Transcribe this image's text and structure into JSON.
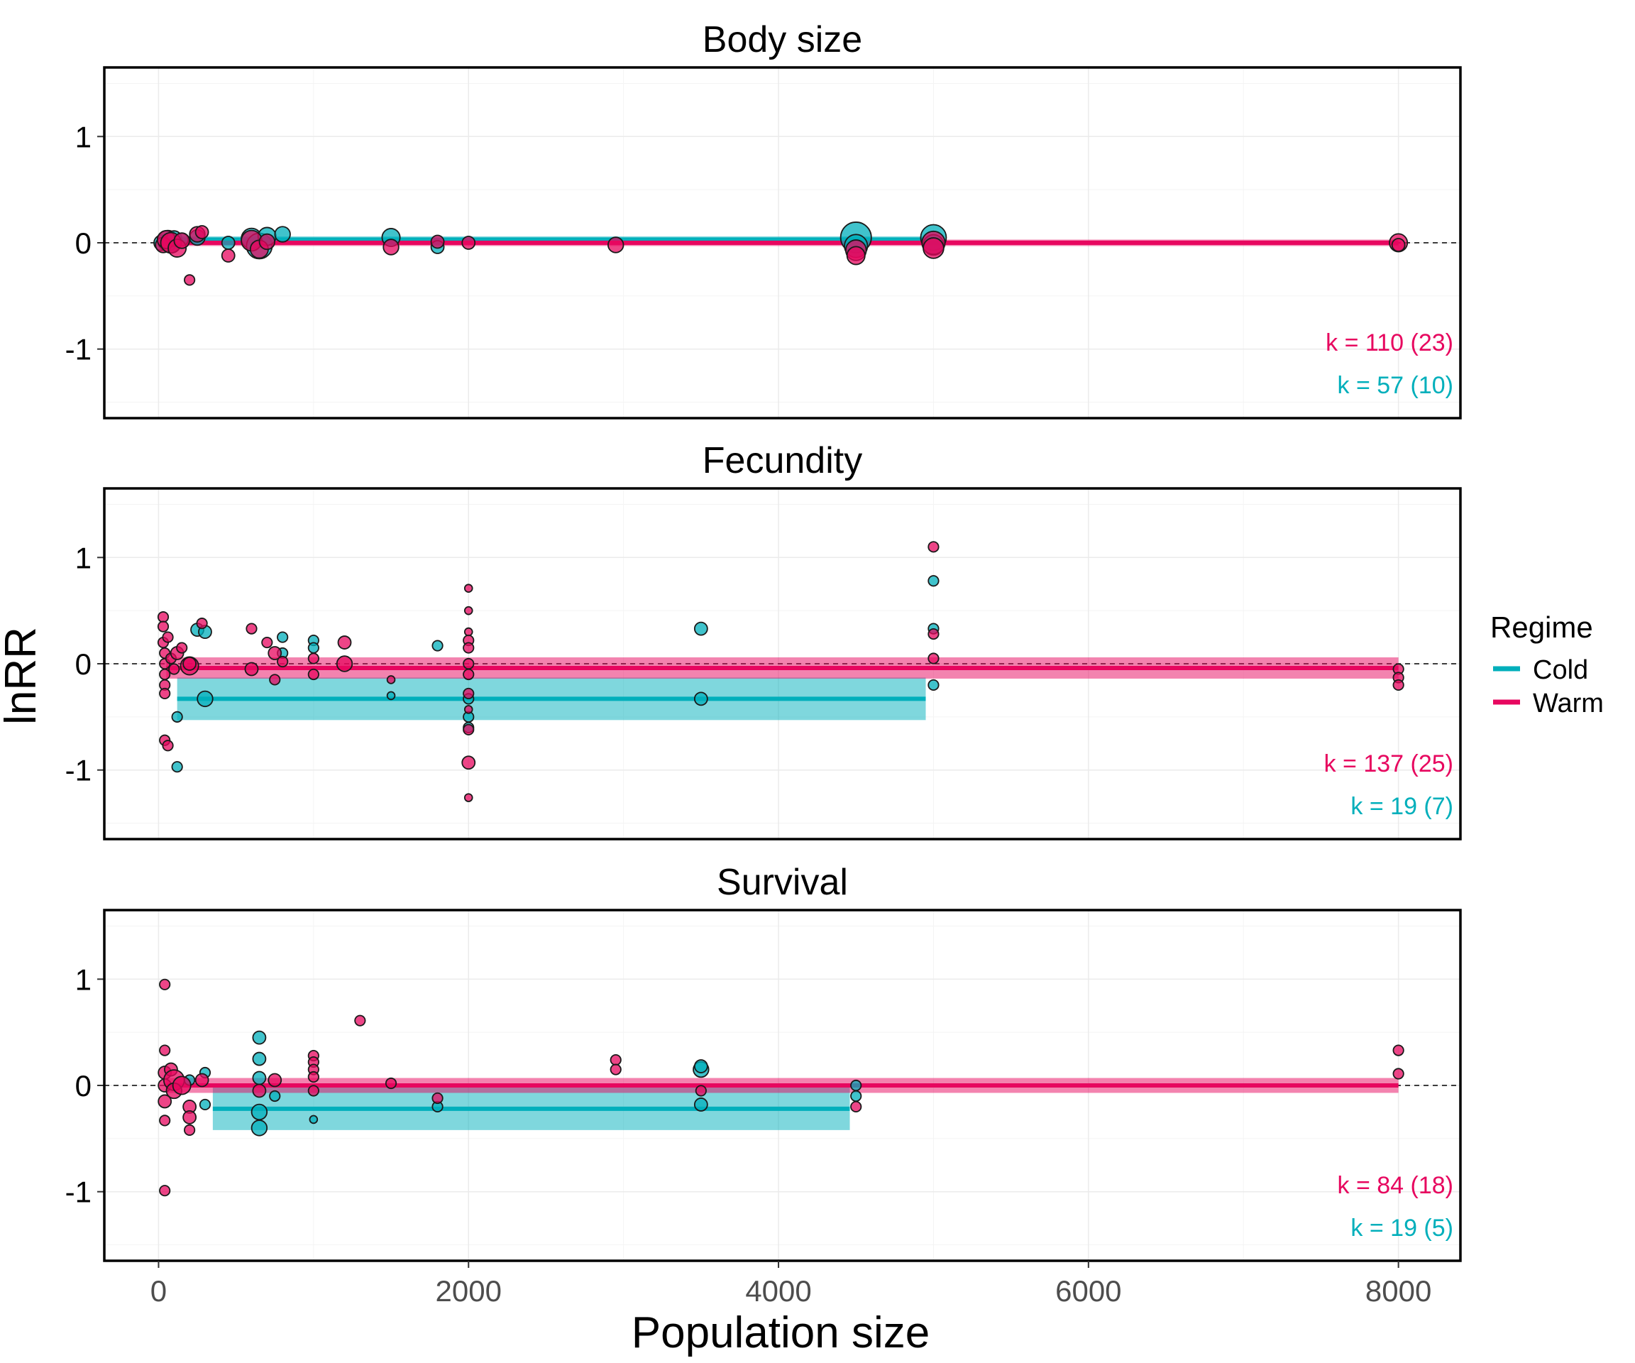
{
  "colors": {
    "Cold": "#00AFBB",
    "Warm": "#E7075F"
  },
  "legend": {
    "title": "Regime",
    "items": [
      "Cold",
      "Warm"
    ]
  },
  "chart_data": {
    "type": "scatter",
    "xlabel": "Population size",
    "ylabel": "lnRR",
    "xlim": [
      -350,
      8400
    ],
    "ylim": [
      -1.65,
      1.65
    ],
    "xticks": [
      0,
      2000,
      4000,
      6000,
      8000
    ],
    "xtick_labels": [
      "0",
      "2000",
      "4000",
      "6000",
      "8000"
    ],
    "yticks": [
      -1,
      0,
      1
    ],
    "ytick_labels": [
      "-1",
      "0",
      "1"
    ],
    "reference_line": 0,
    "grid": true,
    "legend_position": "right",
    "panels": [
      {
        "title": "Body size",
        "k_labels": {
          "Warm": "k = 110 (23)",
          "Cold": "k = 57 (10)"
        },
        "fits": [
          {
            "regime": "Cold",
            "x": [
              100,
              5000
            ],
            "y": 0.03,
            "ci": [
              0.0,
              0.06
            ]
          },
          {
            "regime": "Warm",
            "x": [
              50,
              8000
            ],
            "y": 0.0,
            "ci": [
              -0.03,
              0.03
            ]
          }
        ],
        "points": {
          "Cold": [
            [
              20,
              0.0,
              6
            ],
            [
              60,
              0.02,
              8
            ],
            [
              80,
              -0.01,
              7
            ],
            [
              100,
              0.04,
              6
            ],
            [
              150,
              0.03,
              5
            ],
            [
              250,
              0.05,
              6
            ],
            [
              450,
              0.0,
              5
            ],
            [
              600,
              0.04,
              8
            ],
            [
              650,
              -0.03,
              10
            ],
            [
              700,
              0.06,
              7
            ],
            [
              800,
              0.08,
              6
            ],
            [
              1500,
              0.05,
              7
            ],
            [
              1800,
              -0.04,
              5
            ],
            [
              4500,
              0.05,
              12
            ],
            [
              4500,
              -0.03,
              9
            ],
            [
              5000,
              0.05,
              10
            ],
            [
              5000,
              -0.02,
              8
            ]
          ],
          "Warm": [
            [
              30,
              -0.02,
              6
            ],
            [
              50,
              0.03,
              7
            ],
            [
              80,
              0.0,
              8
            ],
            [
              120,
              -0.05,
              7
            ],
            [
              150,
              0.02,
              6
            ],
            [
              200,
              -0.35,
              4
            ],
            [
              250,
              0.08,
              6
            ],
            [
              280,
              0.1,
              5
            ],
            [
              450,
              -0.12,
              5
            ],
            [
              600,
              0.02,
              8
            ],
            [
              650,
              -0.06,
              7
            ],
            [
              700,
              0.01,
              6
            ],
            [
              1500,
              -0.04,
              6
            ],
            [
              1800,
              0.01,
              5
            ],
            [
              2000,
              0.0,
              5
            ],
            [
              2950,
              -0.02,
              6
            ],
            [
              4500,
              -0.07,
              8
            ],
            [
              4500,
              -0.12,
              7
            ],
            [
              5000,
              0.0,
              9
            ],
            [
              5000,
              -0.05,
              8
            ],
            [
              8000,
              0.0,
              7
            ],
            [
              8000,
              -0.02,
              5
            ]
          ]
        }
      },
      {
        "title": "Fecundity",
        "k_labels": {
          "Warm": "k = 137 (25)",
          "Cold": "k = 19 (7)"
        },
        "fits": [
          {
            "regime": "Cold",
            "x": [
              120,
              4950
            ],
            "y": -0.33,
            "ci": [
              -0.53,
              -0.13
            ]
          },
          {
            "regime": "Warm",
            "x": [
              50,
              8000
            ],
            "y": -0.04,
            "ci": [
              -0.14,
              0.06
            ]
          }
        ],
        "points": {
          "Cold": [
            [
              120,
              -0.5,
              4
            ],
            [
              120,
              -0.97,
              4
            ],
            [
              250,
              0.32,
              5
            ],
            [
              300,
              0.3,
              5
            ],
            [
              300,
              -0.33,
              6
            ],
            [
              800,
              0.25,
              4
            ],
            [
              800,
              0.1,
              4
            ],
            [
              1000,
              0.22,
              4
            ],
            [
              1000,
              0.15,
              4
            ],
            [
              1500,
              -0.3,
              3
            ],
            [
              1800,
              0.17,
              4
            ],
            [
              2000,
              -0.33,
              4
            ],
            [
              2000,
              -0.5,
              4
            ],
            [
              2000,
              -0.6,
              4
            ],
            [
              3500,
              0.33,
              5
            ],
            [
              3500,
              -0.33,
              5
            ],
            [
              5000,
              0.78,
              4
            ],
            [
              5000,
              0.33,
              4
            ],
            [
              5000,
              -0.2,
              4
            ]
          ],
          "Warm": [
            [
              30,
              0.44,
              4
            ],
            [
              30,
              0.35,
              4
            ],
            [
              30,
              0.2,
              4
            ],
            [
              40,
              0.1,
              4
            ],
            [
              40,
              0.0,
              4
            ],
            [
              40,
              -0.1,
              4
            ],
            [
              40,
              -0.2,
              4
            ],
            [
              40,
              -0.28,
              4
            ],
            [
              40,
              -0.72,
              4
            ],
            [
              60,
              -0.77,
              4
            ],
            [
              60,
              0.25,
              4
            ],
            [
              80,
              0.05,
              4
            ],
            [
              100,
              -0.05,
              4
            ],
            [
              120,
              0.1,
              5
            ],
            [
              150,
              0.15,
              4
            ],
            [
              200,
              -0.02,
              7
            ],
            [
              200,
              0.0,
              5
            ],
            [
              280,
              0.38,
              4
            ],
            [
              600,
              0.33,
              4
            ],
            [
              600,
              -0.05,
              5
            ],
            [
              700,
              0.2,
              4
            ],
            [
              750,
              0.1,
              5
            ],
            [
              750,
              -0.15,
              4
            ],
            [
              800,
              0.02,
              4
            ],
            [
              1000,
              0.05,
              4
            ],
            [
              1000,
              -0.1,
              4
            ],
            [
              1200,
              0.2,
              5
            ],
            [
              1200,
              0.0,
              6
            ],
            [
              1500,
              -0.15,
              3
            ],
            [
              2000,
              0.71,
              3
            ],
            [
              2000,
              0.5,
              3
            ],
            [
              2000,
              0.3,
              3
            ],
            [
              2000,
              0.22,
              4
            ],
            [
              2000,
              0.15,
              4
            ],
            [
              2000,
              0.0,
              4
            ],
            [
              2000,
              -0.1,
              4
            ],
            [
              2000,
              -0.28,
              4
            ],
            [
              2000,
              -0.43,
              3
            ],
            [
              2000,
              -0.62,
              4
            ],
            [
              2000,
              -0.93,
              5
            ],
            [
              2000,
              -1.26,
              3
            ],
            [
              5000,
              1.1,
              4
            ],
            [
              5000,
              0.28,
              4
            ],
            [
              5000,
              0.05,
              4
            ],
            [
              8000,
              -0.05,
              4
            ],
            [
              8000,
              -0.13,
              4
            ],
            [
              8000,
              -0.2,
              4
            ]
          ]
        }
      },
      {
        "title": "Survival",
        "k_labels": {
          "Warm": "k = 84 (18)",
          "Cold": "k = 19 (5)"
        },
        "fits": [
          {
            "regime": "Cold",
            "x": [
              350,
              4460
            ],
            "y": -0.22,
            "ci": [
              -0.42,
              -0.02
            ]
          },
          {
            "regime": "Warm",
            "x": [
              50,
              8000
            ],
            "y": 0.0,
            "ci": [
              -0.07,
              0.07
            ]
          }
        ],
        "points": {
          "Cold": [
            [
              200,
              0.05,
              4
            ],
            [
              300,
              0.12,
              4
            ],
            [
              300,
              -0.18,
              4
            ],
            [
              650,
              0.45,
              5
            ],
            [
              650,
              0.25,
              5
            ],
            [
              650,
              0.07,
              5
            ],
            [
              650,
              -0.25,
              6
            ],
            [
              650,
              -0.4,
              6
            ],
            [
              750,
              -0.1,
              4
            ],
            [
              1000,
              -0.32,
              3
            ],
            [
              1800,
              -0.2,
              4
            ],
            [
              3500,
              0.15,
              6
            ],
            [
              3500,
              0.18,
              5
            ],
            [
              3500,
              -0.18,
              5
            ],
            [
              4500,
              0.0,
              4
            ],
            [
              4500,
              -0.1,
              4
            ]
          ],
          "Warm": [
            [
              40,
              0.95,
              4
            ],
            [
              40,
              0.33,
              4
            ],
            [
              40,
              0.12,
              5
            ],
            [
              40,
              0.0,
              5
            ],
            [
              40,
              -0.15,
              5
            ],
            [
              40,
              -0.33,
              4
            ],
            [
              40,
              -0.99,
              4
            ],
            [
              80,
              0.15,
              5
            ],
            [
              100,
              0.05,
              8
            ],
            [
              100,
              -0.05,
              6
            ],
            [
              150,
              0.0,
              7
            ],
            [
              200,
              -0.2,
              5
            ],
            [
              200,
              -0.3,
              5
            ],
            [
              200,
              -0.42,
              4
            ],
            [
              280,
              0.05,
              5
            ],
            [
              650,
              -0.05,
              5
            ],
            [
              750,
              0.05,
              5
            ],
            [
              1000,
              0.28,
              4
            ],
            [
              1000,
              0.22,
              4
            ],
            [
              1000,
              0.15,
              4
            ],
            [
              1000,
              0.08,
              4
            ],
            [
              1000,
              -0.05,
              4
            ],
            [
              1300,
              0.61,
              4
            ],
            [
              1500,
              0.02,
              4
            ],
            [
              1800,
              -0.12,
              4
            ],
            [
              2950,
              0.24,
              4
            ],
            [
              2950,
              0.15,
              4
            ],
            [
              3500,
              -0.05,
              4
            ],
            [
              4500,
              -0.2,
              4
            ],
            [
              8000,
              0.33,
              4
            ],
            [
              8000,
              0.11,
              4
            ]
          ]
        }
      }
    ]
  }
}
